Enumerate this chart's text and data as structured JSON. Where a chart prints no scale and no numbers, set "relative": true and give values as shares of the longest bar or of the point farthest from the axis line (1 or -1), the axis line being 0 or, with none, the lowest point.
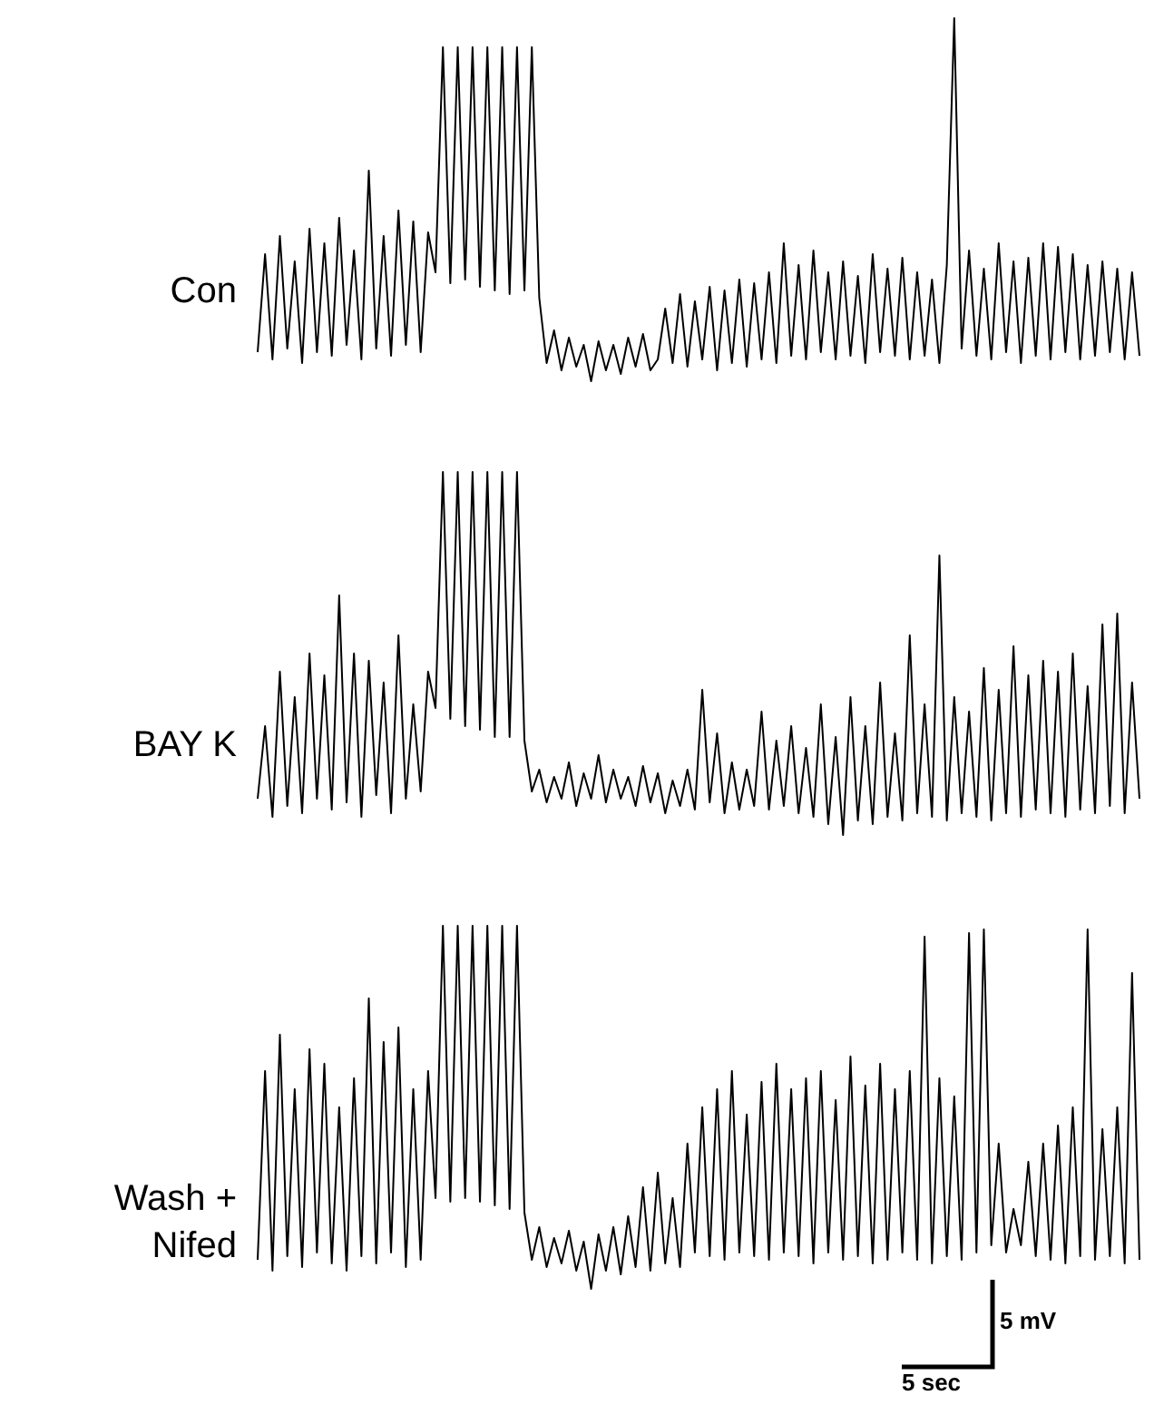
{
  "chart_data": [
    {
      "type": "line",
      "ylabel": "Con",
      "relative": true,
      "categories": [
        null,
        null,
        null,
        null,
        null,
        null,
        null,
        null,
        null,
        null,
        null,
        null,
        null,
        null,
        null,
        null,
        null,
        null,
        null,
        null,
        null,
        null,
        null,
        null,
        null,
        null,
        null,
        null,
        null,
        null,
        null,
        null,
        null,
        null,
        null,
        null,
        null,
        null,
        null,
        null,
        null,
        null,
        null,
        null,
        null,
        null,
        null,
        null,
        null,
        null,
        null,
        null,
        null,
        null,
        null,
        null,
        null,
        null,
        null,
        null,
        null,
        null,
        null,
        null,
        null,
        null,
        null,
        null,
        null,
        null,
        null,
        null,
        null,
        null,
        null,
        null,
        null,
        null,
        null,
        null,
        null,
        null,
        null,
        null,
        null,
        null,
        null,
        null,
        null,
        null,
        null,
        null,
        null,
        null,
        null,
        null,
        null,
        null,
        null,
        null,
        null,
        null,
        null,
        null,
        null,
        null,
        null,
        null,
        null,
        null,
        null,
        null,
        null,
        null,
        null,
        null,
        null,
        null,
        null,
        null
      ],
      "series": [
        {
          "color": "#000000",
          "values": [
            0.08,
            0.35,
            0.06,
            0.4,
            0.09,
            0.33,
            0.05,
            0.42,
            0.08,
            0.38,
            0.07,
            0.45,
            0.1,
            0.36,
            0.06,
            0.58,
            0.09,
            0.4,
            0.07,
            0.47,
            0.1,
            0.44,
            0.08,
            0.41,
            0.3,
            0.92,
            0.27,
            0.92,
            0.28,
            0.92,
            0.26,
            0.92,
            0.25,
            0.92,
            0.24,
            0.92,
            0.25,
            0.92,
            0.23,
            0.05,
            0.14,
            0.03,
            0.12,
            0.04,
            0.1,
            0,
            0.11,
            0.03,
            0.1,
            0.02,
            0.12,
            0.04,
            0.13,
            0.03,
            0.06,
            0.2,
            0.05,
            0.24,
            0.04,
            0.22,
            0.06,
            0.26,
            0.03,
            0.25,
            0.05,
            0.28,
            0.04,
            0.27,
            0.06,
            0.3,
            0.05,
            0.38,
            0.07,
            0.32,
            0.06,
            0.36,
            0.08,
            0.3,
            0.06,
            0.33,
            0.07,
            0.29,
            0.05,
            0.35,
            0.08,
            0.31,
            0.07,
            0.34,
            0.06,
            0.3,
            0.07,
            0.28,
            0.05,
            0.32,
            1.0,
            0.09,
            0.36,
            0.07,
            0.31,
            0.06,
            0.38,
            0.08,
            0.33,
            0.05,
            0.34,
            0.07,
            0.38,
            0.06,
            0.37,
            0.08,
            0.35,
            0.06,
            0.32,
            0.07,
            0.33,
            0.08,
            0.31,
            0.06,
            0.3,
            0.07
          ]
        }
      ]
    },
    {
      "type": "line",
      "ylabel": "BAY K",
      "relative": true,
      "categories": [
        null,
        null,
        null,
        null,
        null,
        null,
        null,
        null,
        null,
        null,
        null,
        null,
        null,
        null,
        null,
        null,
        null,
        null,
        null,
        null,
        null,
        null,
        null,
        null,
        null,
        null,
        null,
        null,
        null,
        null,
        null,
        null,
        null,
        null,
        null,
        null,
        null,
        null,
        null,
        null,
        null,
        null,
        null,
        null,
        null,
        null,
        null,
        null,
        null,
        null,
        null,
        null,
        null,
        null,
        null,
        null,
        null,
        null,
        null,
        null,
        null,
        null,
        null,
        null,
        null,
        null,
        null,
        null,
        null,
        null,
        null,
        null,
        null,
        null,
        null,
        null,
        null,
        null,
        null,
        null,
        null,
        null,
        null,
        null,
        null,
        null,
        null,
        null,
        null,
        null,
        null,
        null,
        null,
        null,
        null,
        null,
        null,
        null,
        null,
        null,
        null,
        null,
        null,
        null,
        null,
        null,
        null,
        null,
        null,
        null,
        null,
        null,
        null,
        null,
        null,
        null,
        null,
        null,
        null,
        null
      ],
      "series": [
        {
          "color": "#000000",
          "values": [
            0.1,
            0.3,
            0.05,
            0.45,
            0.08,
            0.38,
            0.06,
            0.5,
            0.1,
            0.44,
            0.07,
            0.66,
            0.09,
            0.5,
            0.05,
            0.48,
            0.11,
            0.42,
            0.06,
            0.55,
            0.1,
            0.36,
            0.12,
            0.45,
            0.35,
            1.0,
            0.32,
            1.0,
            0.3,
            1.0,
            0.29,
            1.0,
            0.27,
            1.0,
            0.27,
            1.0,
            0.26,
            0.12,
            0.18,
            0.09,
            0.16,
            0.1,
            0.2,
            0.08,
            0.17,
            0.1,
            0.22,
            0.09,
            0.18,
            0.1,
            0.16,
            0.08,
            0.19,
            0.09,
            0.17,
            0.06,
            0.15,
            0.08,
            0.18,
            0.07,
            0.4,
            0.09,
            0.28,
            0.06,
            0.2,
            0.07,
            0.18,
            0.08,
            0.34,
            0.07,
            0.26,
            0.08,
            0.3,
            0.06,
            0.24,
            0.05,
            0.36,
            0.03,
            0.27,
            0,
            0.38,
            0.04,
            0.3,
            0.03,
            0.42,
            0.05,
            0.28,
            0.04,
            0.55,
            0.06,
            0.36,
            0.05,
            0.77,
            0.04,
            0.38,
            0.06,
            0.34,
            0.05,
            0.46,
            0.04,
            0.4,
            0.06,
            0.52,
            0.05,
            0.44,
            0.07,
            0.48,
            0.06,
            0.45,
            0.05,
            0.5,
            0.07,
            0.41,
            0.06,
            0.58,
            0.08,
            0.61,
            0.06,
            0.42,
            0.1
          ]
        }
      ]
    },
    {
      "type": "line",
      "ylabel": "Wash +\nNifed",
      "relative": true,
      "annotations": [
        "5 mV",
        "5 sec"
      ],
      "categories": [
        null,
        null,
        null,
        null,
        null,
        null,
        null,
        null,
        null,
        null,
        null,
        null,
        null,
        null,
        null,
        null,
        null,
        null,
        null,
        null,
        null,
        null,
        null,
        null,
        null,
        null,
        null,
        null,
        null,
        null,
        null,
        null,
        null,
        null,
        null,
        null,
        null,
        null,
        null,
        null,
        null,
        null,
        null,
        null,
        null,
        null,
        null,
        null,
        null,
        null,
        null,
        null,
        null,
        null,
        null,
        null,
        null,
        null,
        null,
        null,
        null,
        null,
        null,
        null,
        null,
        null,
        null,
        null,
        null,
        null,
        null,
        null,
        null,
        null,
        null,
        null,
        null,
        null,
        null,
        null,
        null,
        null,
        null,
        null,
        null,
        null,
        null,
        null,
        null,
        null,
        null,
        null,
        null,
        null,
        null,
        null,
        null,
        null,
        null,
        null,
        null,
        null,
        null,
        null,
        null,
        null,
        null,
        null,
        null,
        null,
        null,
        null,
        null,
        null,
        null,
        null,
        null,
        null,
        null,
        null
      ],
      "series": [
        {
          "color": "#000000",
          "values": [
            0.08,
            0.6,
            0.05,
            0.7,
            0.09,
            0.55,
            0.06,
            0.66,
            0.1,
            0.62,
            0.07,
            0.5,
            0.05,
            0.58,
            0.09,
            0.8,
            0.07,
            0.68,
            0.1,
            0.72,
            0.06,
            0.55,
            0.08,
            0.6,
            0.25,
            1.0,
            0.24,
            1.0,
            0.25,
            1.0,
            0.24,
            1.0,
            0.23,
            1.0,
            0.22,
            1.0,
            0.21,
            0.08,
            0.17,
            0.06,
            0.14,
            0.07,
            0.16,
            0.05,
            0.13,
            0,
            0.15,
            0.05,
            0.17,
            0.04,
            0.2,
            0.06,
            0.28,
            0.05,
            0.32,
            0.07,
            0.25,
            0.06,
            0.4,
            0.1,
            0.5,
            0.09,
            0.55,
            0.08,
            0.6,
            0.1,
            0.48,
            0.09,
            0.57,
            0.08,
            0.62,
            0.1,
            0.55,
            0.09,
            0.58,
            0.07,
            0.6,
            0.1,
            0.52,
            0.08,
            0.64,
            0.09,
            0.56,
            0.07,
            0.62,
            0.08,
            0.55,
            0.1,
            0.6,
            0.08,
            0.97,
            0.07,
            0.58,
            0.09,
            0.53,
            0.08,
            0.98,
            0.1,
            0.99,
            0.12,
            0.4,
            0.1,
            0.22,
            0.12,
            0.35,
            0.09,
            0.4,
            0.08,
            0.45,
            0.07,
            0.5,
            0.09,
            0.99,
            0.08,
            0.44,
            0.09,
            0.5,
            0.07,
            0.87,
            0.08
          ]
        }
      ]
    }
  ]
}
